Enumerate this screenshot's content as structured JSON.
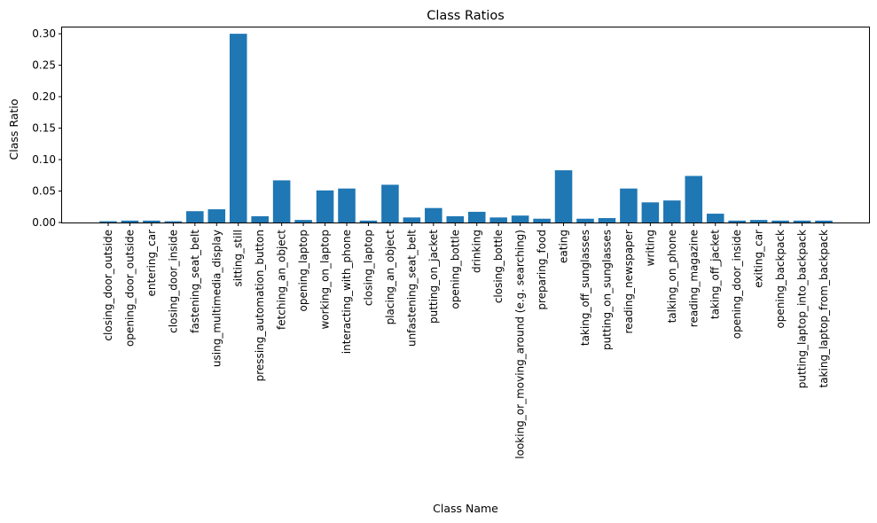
{
  "chart_data": {
    "type": "bar",
    "title": "Class Ratios",
    "xlabel": "Class Name",
    "ylabel": "Class Ratio",
    "ylim": [
      0,
      0.31
    ],
    "yticks": [
      0.0,
      0.05,
      0.1,
      0.15,
      0.2,
      0.25,
      0.3
    ],
    "ytick_labels": [
      "0.00",
      "0.05",
      "0.10",
      "0.15",
      "0.20",
      "0.25",
      "0.30"
    ],
    "bar_color": "#1f77b4",
    "grid": false,
    "categories": [
      "closing_door_outside",
      "opening_door_outside",
      "entering_car",
      "closing_door_inside",
      "fastening_seat_belt",
      "using_multimedia_display",
      "sitting_still",
      "pressing_automation_button",
      "fetching_an_object",
      "opening_laptop",
      "working_on_laptop",
      "interacting_with_phone",
      "closing_laptop",
      "placing_an_object",
      "unfastening_seat_belt",
      "putting_on_jacket",
      "opening_bottle",
      "drinking",
      "closing_bottle",
      "looking_or_moving_around (e.g. searching)",
      "preparing_food",
      "eating",
      "taking_off_sunglasses",
      "putting_on_sunglasses",
      "reading_newspaper",
      "writing",
      "talking_on_phone",
      "reading_magazine",
      "taking_off_jacket",
      "opening_door_inside",
      "exiting_car",
      "opening_backpack",
      "putting_laptop_into_backpack",
      "taking_laptop_from_backpack"
    ],
    "values": [
      0.002,
      0.003,
      0.003,
      0.002,
      0.018,
      0.021,
      0.3,
      0.01,
      0.067,
      0.004,
      0.051,
      0.054,
      0.003,
      0.06,
      0.008,
      0.023,
      0.01,
      0.017,
      0.008,
      0.011,
      0.006,
      0.083,
      0.006,
      0.007,
      0.054,
      0.032,
      0.035,
      0.074,
      0.014,
      0.003,
      0.004,
      0.003,
      0.003,
      0.003
    ]
  }
}
